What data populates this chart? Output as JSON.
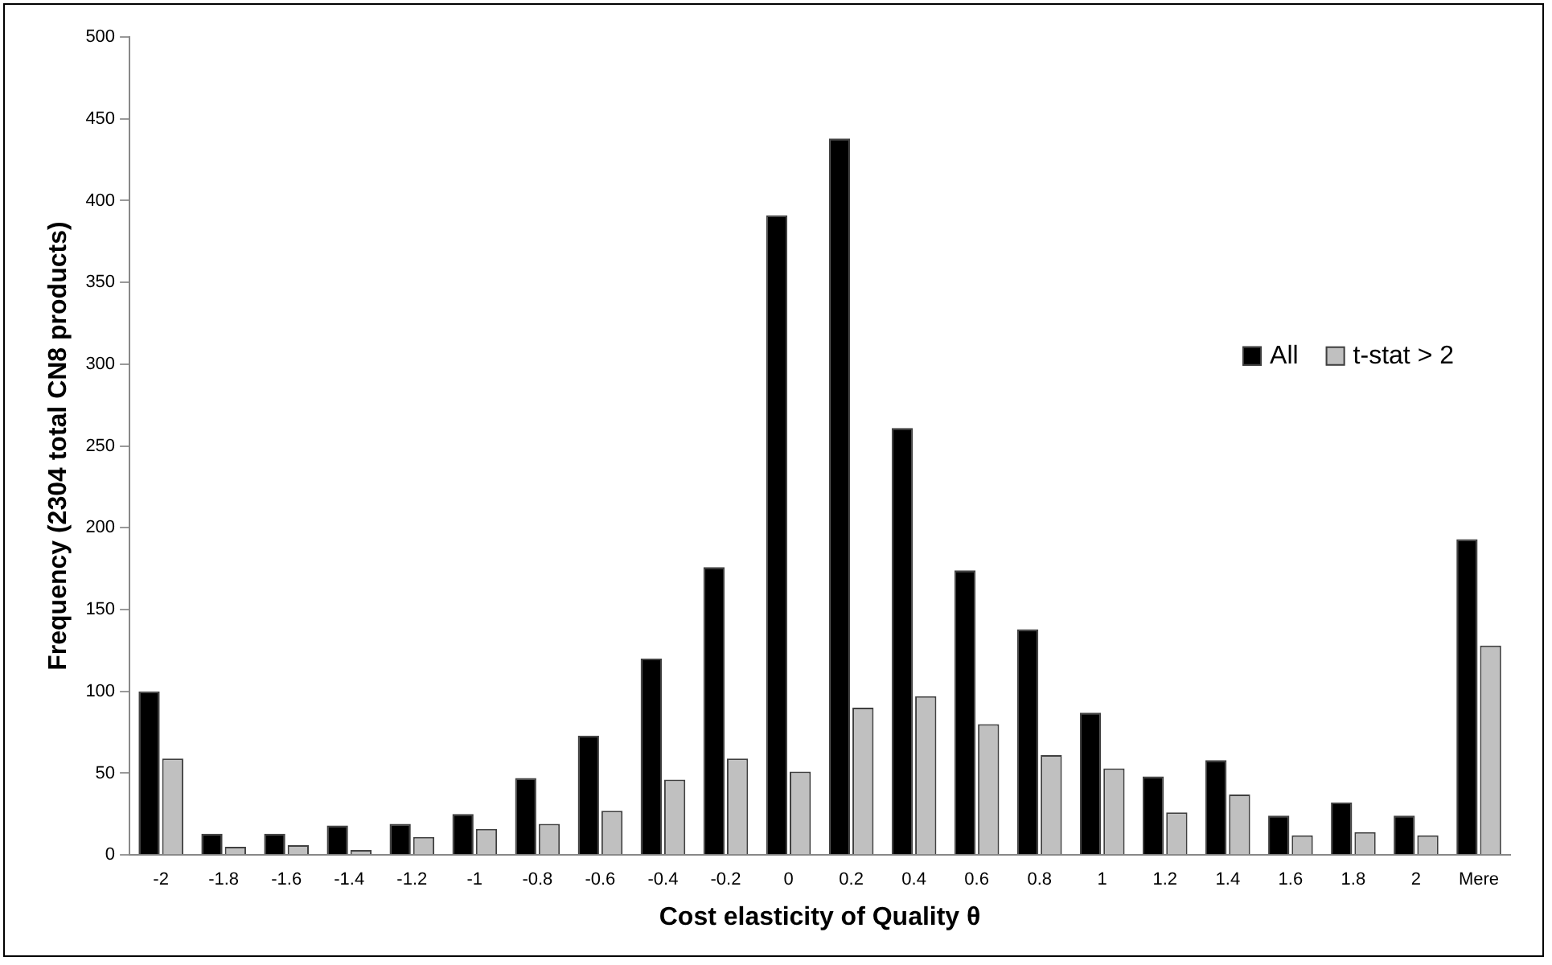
{
  "chart_data": {
    "type": "bar",
    "xlabel": "Cost elasticity of Quality θ",
    "ylabel": "Frequency (2304 total CN8 products)",
    "categories": [
      "-2",
      "-1.8",
      "-1.6",
      "-1.4",
      "-1.2",
      "-1",
      "-0.8",
      "-0.6",
      "-0.4",
      "-0.2",
      "0",
      "0.2",
      "0.4",
      "0.6",
      "0.8",
      "1",
      "1.2",
      "1.4",
      "1.6",
      "1.8",
      "2",
      "Mere"
    ],
    "series": [
      {
        "name": "All",
        "color": "#000000",
        "values": [
          100,
          13,
          13,
          18,
          19,
          25,
          47,
          73,
          120,
          176,
          391,
          438,
          261,
          174,
          138,
          87,
          48,
          58,
          24,
          32,
          24,
          193
        ]
      },
      {
        "name": "t-stat > 2",
        "color": "#c0c0c0",
        "values": [
          59,
          5,
          6,
          3,
          11,
          16,
          19,
          27,
          46,
          59,
          51,
          90,
          97,
          80,
          61,
          53,
          26,
          37,
          12,
          14,
          12,
          128
        ]
      }
    ],
    "ylim": [
      0,
      500
    ],
    "yticks": [
      0,
      50,
      100,
      150,
      200,
      250,
      300,
      350,
      400,
      450,
      500
    ],
    "legend": "right",
    "grid": false
  }
}
